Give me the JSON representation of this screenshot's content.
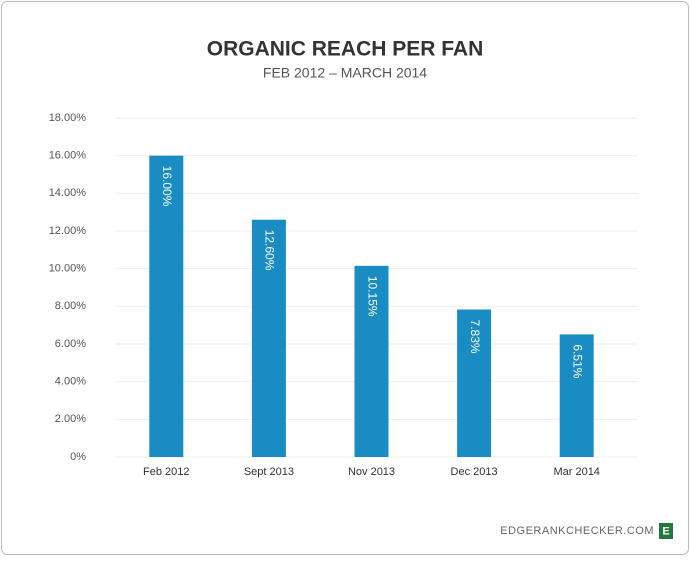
{
  "chart_data": {
    "type": "bar",
    "title": "ORGANIC REACH PER FAN",
    "subtitle": "FEB 2012 – MARCH 2014",
    "categories": [
      "Feb 2012",
      "Sept 2013",
      "Nov 2013",
      "Dec 2013",
      "Mar 2014"
    ],
    "values": [
      16.0,
      12.6,
      10.15,
      7.83,
      6.51
    ],
    "value_labels": [
      "16.00%",
      "12.60%",
      "10.15%",
      "7.83%",
      "6.51%"
    ],
    "color": "#1a8cc4",
    "ylim": [
      0,
      18
    ],
    "yticks": [
      {
        "value": 0,
        "label": "0%"
      },
      {
        "value": 2,
        "label": "2.00%"
      },
      {
        "value": 4,
        "label": "4.00%"
      },
      {
        "value": 6,
        "label": "6.00%"
      },
      {
        "value": 8,
        "label": "8.00%"
      },
      {
        "value": 10,
        "label": "10.00%"
      },
      {
        "value": 12,
        "label": "12.00%"
      },
      {
        "value": 14,
        "label": "14.00%"
      },
      {
        "value": 16,
        "label": "16.00%"
      },
      {
        "value": 18,
        "label": "18.00%"
      }
    ],
    "grid": true
  },
  "footer": {
    "site": "EDGERANKCHECKER.COM",
    "logo": "E"
  }
}
